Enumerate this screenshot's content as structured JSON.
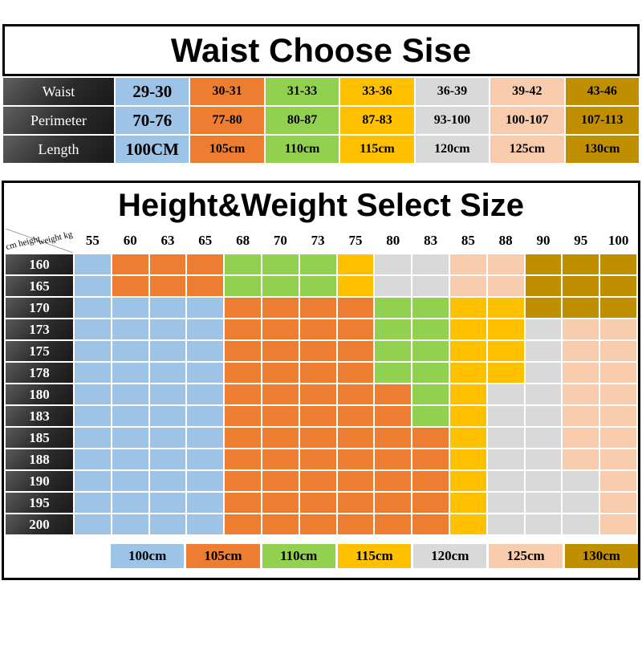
{
  "colors": {
    "blue": "#9dc3e6",
    "orange": "#ed7d31",
    "green": "#92d050",
    "yellow": "#ffc000",
    "gray": "#d9d9d9",
    "peach": "#f8cbad",
    "gold": "#bf8f00",
    "header_dark": "#3a3a3a"
  },
  "waist_table": {
    "title": "Waist Choose Sise",
    "column_colors": [
      "blue",
      "orange",
      "green",
      "yellow",
      "gray",
      "peach",
      "gold"
    ],
    "rows": [
      {
        "label": "Waist",
        "values": [
          "29-30",
          "30-31",
          "31-33",
          "33-36",
          "36-39",
          "39-42",
          "43-46"
        ]
      },
      {
        "label": "Perimeter",
        "values": [
          "70-76",
          "77-80",
          "80-87",
          "87-83",
          "93-100",
          "100-107",
          "107-113"
        ]
      },
      {
        "label": "Length",
        "values": [
          "100CM",
          "105cm",
          "110cm",
          "115cm",
          "120cm",
          "125cm",
          "130cm"
        ]
      }
    ]
  },
  "size_grid": {
    "title": "Height&Weight Select Size",
    "corner": {
      "top": "weight kg",
      "bottom": "cm height"
    },
    "weights": [
      "55",
      "60",
      "63",
      "65",
      "68",
      "70",
      "73",
      "75",
      "80",
      "83",
      "85",
      "88",
      "90",
      "95",
      "100"
    ],
    "heights": [
      "160",
      "165",
      "170",
      "173",
      "175",
      "178",
      "180",
      "183",
      "185",
      "188",
      "190",
      "195",
      "200"
    ],
    "color_keys": {
      "B": "blue",
      "O": "orange",
      "G": "green",
      "Y": "yellow",
      "E": "gray",
      "P": "peach",
      "D": "gold"
    },
    "rows": [
      "BOOOGGGYEEPPDDD",
      "BOOOGGGYEEPPDDD",
      "BBBBOOOOGGYYDDD",
      "BBBBOOOOGGYYEPP",
      "BBBBOOOOGGYYEPP",
      "BBBBOOOOGGYYEPP",
      "BBBBOOOOOGYEEPP",
      "BBBBOOOOOGYEEPP",
      "BBBBOOOOOOYEEPP",
      "BBBBOOOOOOYEEPP",
      "BBBBOOOOOOYEEEP",
      "BBBBOOOOOOYEEEP",
      "BBBBOOOOOOYEEEP"
    ],
    "legend": [
      {
        "label": "100cm",
        "color": "blue"
      },
      {
        "label": "105cm",
        "color": "orange"
      },
      {
        "label": "110cm",
        "color": "green"
      },
      {
        "label": "115cm",
        "color": "yellow"
      },
      {
        "label": "120cm",
        "color": "gray"
      },
      {
        "label": "125cm",
        "color": "peach"
      },
      {
        "label": "130cm",
        "color": "gold"
      }
    ]
  },
  "chart_data": [
    {
      "type": "table",
      "title": "Waist Choose Sise",
      "row_headers": [
        "Waist",
        "Perimeter",
        "Length"
      ],
      "columns": [
        {
          "waist": "29-30",
          "perimeter": "70-76",
          "length": "100CM",
          "color": "#9dc3e6"
        },
        {
          "waist": "30-31",
          "perimeter": "77-80",
          "length": "105cm",
          "color": "#ed7d31"
        },
        {
          "waist": "31-33",
          "perimeter": "80-87",
          "length": "110cm",
          "color": "#92d050"
        },
        {
          "waist": "33-36",
          "perimeter": "87-83",
          "length": "115cm",
          "color": "#ffc000"
        },
        {
          "waist": "36-39",
          "perimeter": "93-100",
          "length": "120cm",
          "color": "#d9d9d9"
        },
        {
          "waist": "39-42",
          "perimeter": "100-107",
          "length": "125cm",
          "color": "#f8cbad"
        },
        {
          "waist": "43-46",
          "perimeter": "107-113",
          "length": "130cm",
          "color": "#bf8f00"
        }
      ]
    },
    {
      "type": "heatmap",
      "title": "Height&Weight Select Size",
      "x_axis_label": "weight kg",
      "y_axis_label": "cm height",
      "x": [
        55,
        60,
        63,
        65,
        68,
        70,
        73,
        75,
        80,
        83,
        85,
        88,
        90,
        95,
        100
      ],
      "y": [
        160,
        165,
        170,
        173,
        175,
        178,
        180,
        183,
        185,
        188,
        190,
        195,
        200
      ],
      "cell_size_by_key": {
        "B": "100cm",
        "O": "105cm",
        "G": "110cm",
        "Y": "115cm",
        "E": "120cm",
        "P": "125cm",
        "D": "130cm"
      },
      "rows": [
        "BOOOGGGYEEPPDDD",
        "BOOOGGGYEEPPDDD",
        "BBBBOOOOGGYYDDD",
        "BBBBOOOOGGYYEPP",
        "BBBBOOOOGGYYEPP",
        "BBBBOOOOGGYYEPP",
        "BBBBOOOOOGYEEPP",
        "BBBBOOOOOGYEEPP",
        "BBBBOOOOOOYEEPP",
        "BBBBOOOOOOYEEPP",
        "BBBBOOOOOOYEEEP",
        "BBBBOOOOOOYEEEP",
        "BBBBOOOOOOYEEEP"
      ],
      "legend": [
        "100cm",
        "105cm",
        "110cm",
        "115cm",
        "120cm",
        "125cm",
        "130cm"
      ],
      "legend_position": "bottom"
    }
  ]
}
